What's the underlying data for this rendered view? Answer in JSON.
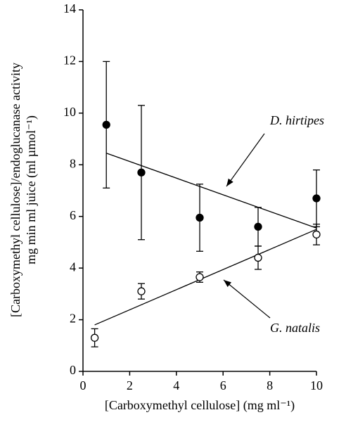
{
  "chart_data": {
    "type": "scatter",
    "xlabel": "[Carboxymethyl cellulose] (mg ml⁻¹)",
    "ylabel": [
      "[Carboxymethyl cellulose]/endoglucanase activity",
      "mg min ml juice (ml µmol⁻¹)"
    ],
    "xlim": [
      0,
      10
    ],
    "xticks": [
      0,
      2,
      4,
      6,
      8,
      10
    ],
    "ylim": [
      0,
      14
    ],
    "yticks": [
      0,
      2,
      4,
      6,
      8,
      10,
      12,
      14
    ],
    "series": [
      {
        "name": "D. hirtipes",
        "color": "#000000",
        "marker": "filled",
        "x": [
          1,
          2.5,
          5,
          7.5,
          10
        ],
        "values": [
          9.55,
          7.7,
          5.95,
          5.6,
          6.7
        ],
        "errors": [
          2.45,
          2.6,
          1.3,
          0.75,
          1.1
        ],
        "fit": {
          "x": [
            1,
            10
          ],
          "y": [
            8.45,
            5.55
          ]
        }
      },
      {
        "name": "G. natalis",
        "color": "#000000",
        "marker": "open",
        "x": [
          0.5,
          2.5,
          5,
          7.5,
          10
        ],
        "values": [
          1.3,
          3.1,
          3.65,
          4.4,
          5.3
        ],
        "errors": [
          0.35,
          0.3,
          0.2,
          0.45,
          0.4
        ],
        "fit": {
          "x": [
            0.5,
            10
          ],
          "y": [
            1.8,
            5.5
          ]
        }
      }
    ]
  }
}
